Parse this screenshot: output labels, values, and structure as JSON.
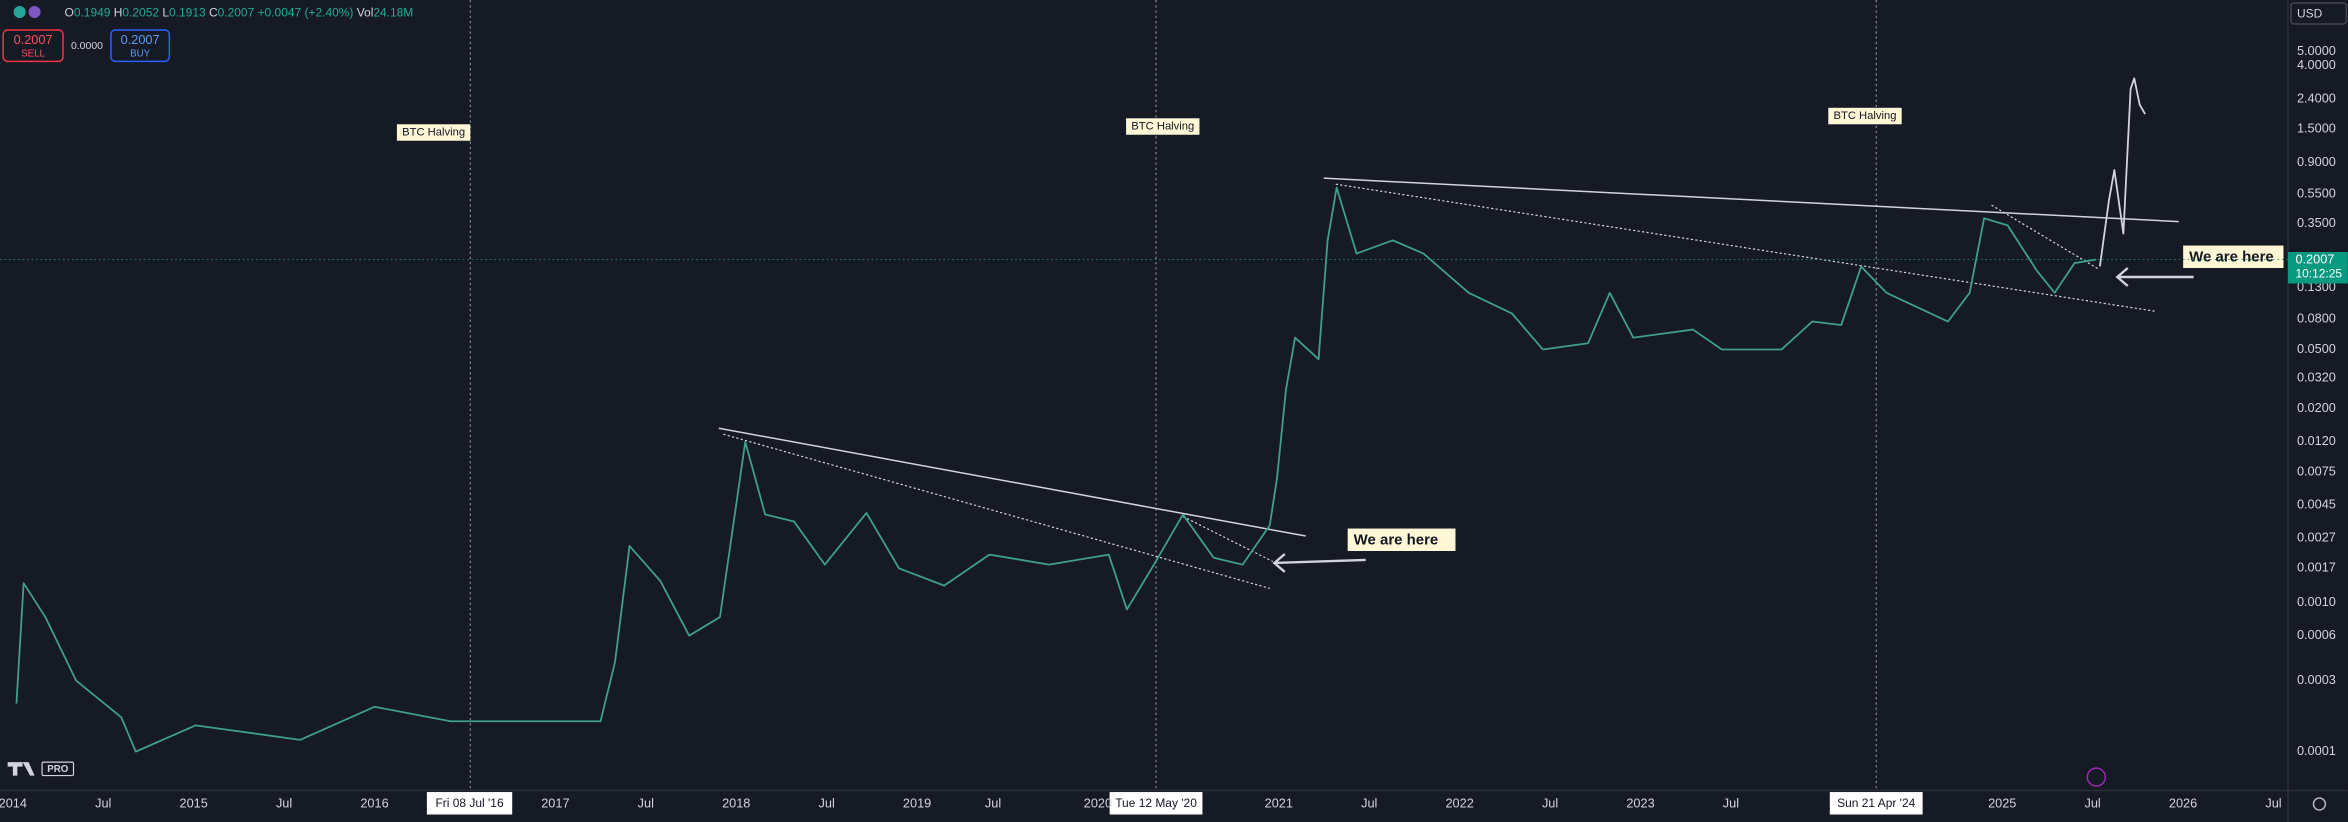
{
  "header": {
    "legend": [
      {
        "key": "O",
        "value": "0.1949"
      },
      {
        "key": "H",
        "value": "0.2052"
      },
      {
        "key": "L",
        "value": "0.1913"
      },
      {
        "key": "C",
        "value": "0.2007"
      }
    ],
    "change": "+0.0047 (+2.40%)",
    "volume_key": "Vol",
    "volume": "24.18M",
    "sell_price": "0.2007",
    "sell_label": "SELL",
    "spread": "0.0000",
    "buy_price": "0.2007",
    "buy_label": "BUY",
    "currency": "USD",
    "countdown": "10:12:25",
    "logo": "PRO"
  },
  "chart_data": {
    "type": "line",
    "yscale": "log",
    "grid": false,
    "xlim": [
      2013.93,
      2026.58
    ],
    "xticks": [
      {
        "value": 2014,
        "label": "2014"
      },
      {
        "value": 2014.5,
        "label": "Jul"
      },
      {
        "value": 2015,
        "label": "2015"
      },
      {
        "value": 2015.5,
        "label": "Jul"
      },
      {
        "value": 2016,
        "label": "2016"
      },
      {
        "value": 2017,
        "label": "2017"
      },
      {
        "value": 2017.5,
        "label": "Jul"
      },
      {
        "value": 2018,
        "label": "2018"
      },
      {
        "value": 2018.5,
        "label": "Jul"
      },
      {
        "value": 2019,
        "label": "2019"
      },
      {
        "value": 2019.42,
        "label": "Jul"
      },
      {
        "value": 2020,
        "label": "2020"
      },
      {
        "value": 2021,
        "label": "2021"
      },
      {
        "value": 2021.5,
        "label": "Jul"
      },
      {
        "value": 2022,
        "label": "2022"
      },
      {
        "value": 2022.5,
        "label": "Jul"
      },
      {
        "value": 2023,
        "label": "2023"
      },
      {
        "value": 2023.5,
        "label": "Jul"
      },
      {
        "value": 2025,
        "label": "2025"
      },
      {
        "value": 2025.5,
        "label": "Jul"
      },
      {
        "value": 2026,
        "label": "2026"
      },
      {
        "value": 2026.5,
        "label": "Jul"
      }
    ],
    "ylim": [
      5.48e-05,
      11.07
    ],
    "yticks": [
      {
        "value": 5,
        "label": "5.0000"
      },
      {
        "value": 4,
        "label": "4.0000"
      },
      {
        "value": 2.4,
        "label": "2.4000"
      },
      {
        "value": 1.5,
        "label": "1.5000"
      },
      {
        "value": 0.9,
        "label": "0.9000"
      },
      {
        "value": 0.55,
        "label": "0.5500"
      },
      {
        "value": 0.35,
        "label": "0.3500"
      },
      {
        "value": 0.13,
        "label": "0.1300"
      },
      {
        "value": 0.08,
        "label": "0.0800"
      },
      {
        "value": 0.05,
        "label": "0.0500"
      },
      {
        "value": 0.032,
        "label": "0.0320"
      },
      {
        "value": 0.02,
        "label": "0.0200"
      },
      {
        "value": 0.012,
        "label": "0.0120"
      },
      {
        "value": 0.0075,
        "label": "0.0075"
      },
      {
        "value": 0.0045,
        "label": "0.0045"
      },
      {
        "value": 0.0027,
        "label": "0.0027"
      },
      {
        "value": 0.0017,
        "label": "0.0017"
      },
      {
        "value": 0.001,
        "label": "0.0010"
      },
      {
        "value": 0.0006,
        "label": "0.0006"
      },
      {
        "value": 0.0003,
        "label": "0.0003"
      },
      {
        "value": 0.0001,
        "label": "0.0001"
      }
    ],
    "last_price": {
      "value": 0.2007,
      "label": "0.2007"
    },
    "series": [
      {
        "color": "#3f9e8c",
        "x": [
          2014.02,
          2014.06,
          2014.18,
          2014.35,
          2014.6,
          2014.68,
          2015.01,
          2015.59,
          2016.0,
          2016.42,
          2017.25,
          2017.33,
          2017.41,
          2017.58,
          2017.74,
          2017.91,
          2018.05,
          2018.16,
          2018.32,
          2018.49,
          2018.72,
          2018.9,
          2019.15,
          2019.4,
          2019.73,
          2020.06,
          2020.16,
          2020.31,
          2020.47,
          2020.64,
          2020.8,
          2020.95,
          2020.99,
          2021.04,
          2021.09,
          2021.22,
          2021.27,
          2021.32,
          2021.43,
          2021.63,
          2021.8,
          2022.05,
          2022.29,
          2022.46,
          2022.71,
          2022.83,
          2022.96,
          2023.29,
          2023.45,
          2023.78,
          2023.95,
          2024.11,
          2024.22,
          2024.36,
          2024.53,
          2024.7,
          2024.82,
          2024.9,
          2025.03,
          2025.19,
          2025.29,
          2025.4,
          2025.52
        ],
        "values": [
          0.00021,
          0.00135,
          0.0008,
          0.0003,
          0.00017,
          0.0001,
          0.00015,
          0.00012,
          0.0002,
          0.00016,
          0.00016,
          0.0004,
          0.0024,
          0.0014,
          0.0006,
          0.0008,
          0.012,
          0.0039,
          0.0035,
          0.0018,
          0.004,
          0.0017,
          0.0013,
          0.0021,
          0.0018,
          0.0021,
          0.0009,
          0.0018,
          0.0039,
          0.002,
          0.0018,
          0.0033,
          0.0068,
          0.027,
          0.06,
          0.043,
          0.27,
          0.61,
          0.22,
          0.27,
          0.22,
          0.12,
          0.087,
          0.05,
          0.055,
          0.12,
          0.06,
          0.068,
          0.05,
          0.05,
          0.077,
          0.073,
          0.18,
          0.12,
          0.096,
          0.077,
          0.12,
          0.38,
          0.34,
          0.17,
          0.12,
          0.19,
          0.2007
        ]
      },
      {
        "color": "#d1d4dc",
        "x": [
          2025.54,
          2025.59,
          2025.62,
          2025.67,
          2025.71,
          2025.73,
          2025.76,
          2025.79
        ],
        "values": [
          0.18,
          0.5,
          0.8,
          0.3,
          2.8,
          3.3,
          2.2,
          1.9
        ]
      }
    ],
    "annotations": {
      "halvings": [
        "BTC Halving",
        "BTC Halving",
        "BTC Halving"
      ],
      "halving_dates": [
        "Fri 08 Jul '16",
        "Tue 12 May '20",
        "Sun 21 Apr '24"
      ],
      "notes": [
        "We are here",
        "We are here"
      ]
    }
  }
}
